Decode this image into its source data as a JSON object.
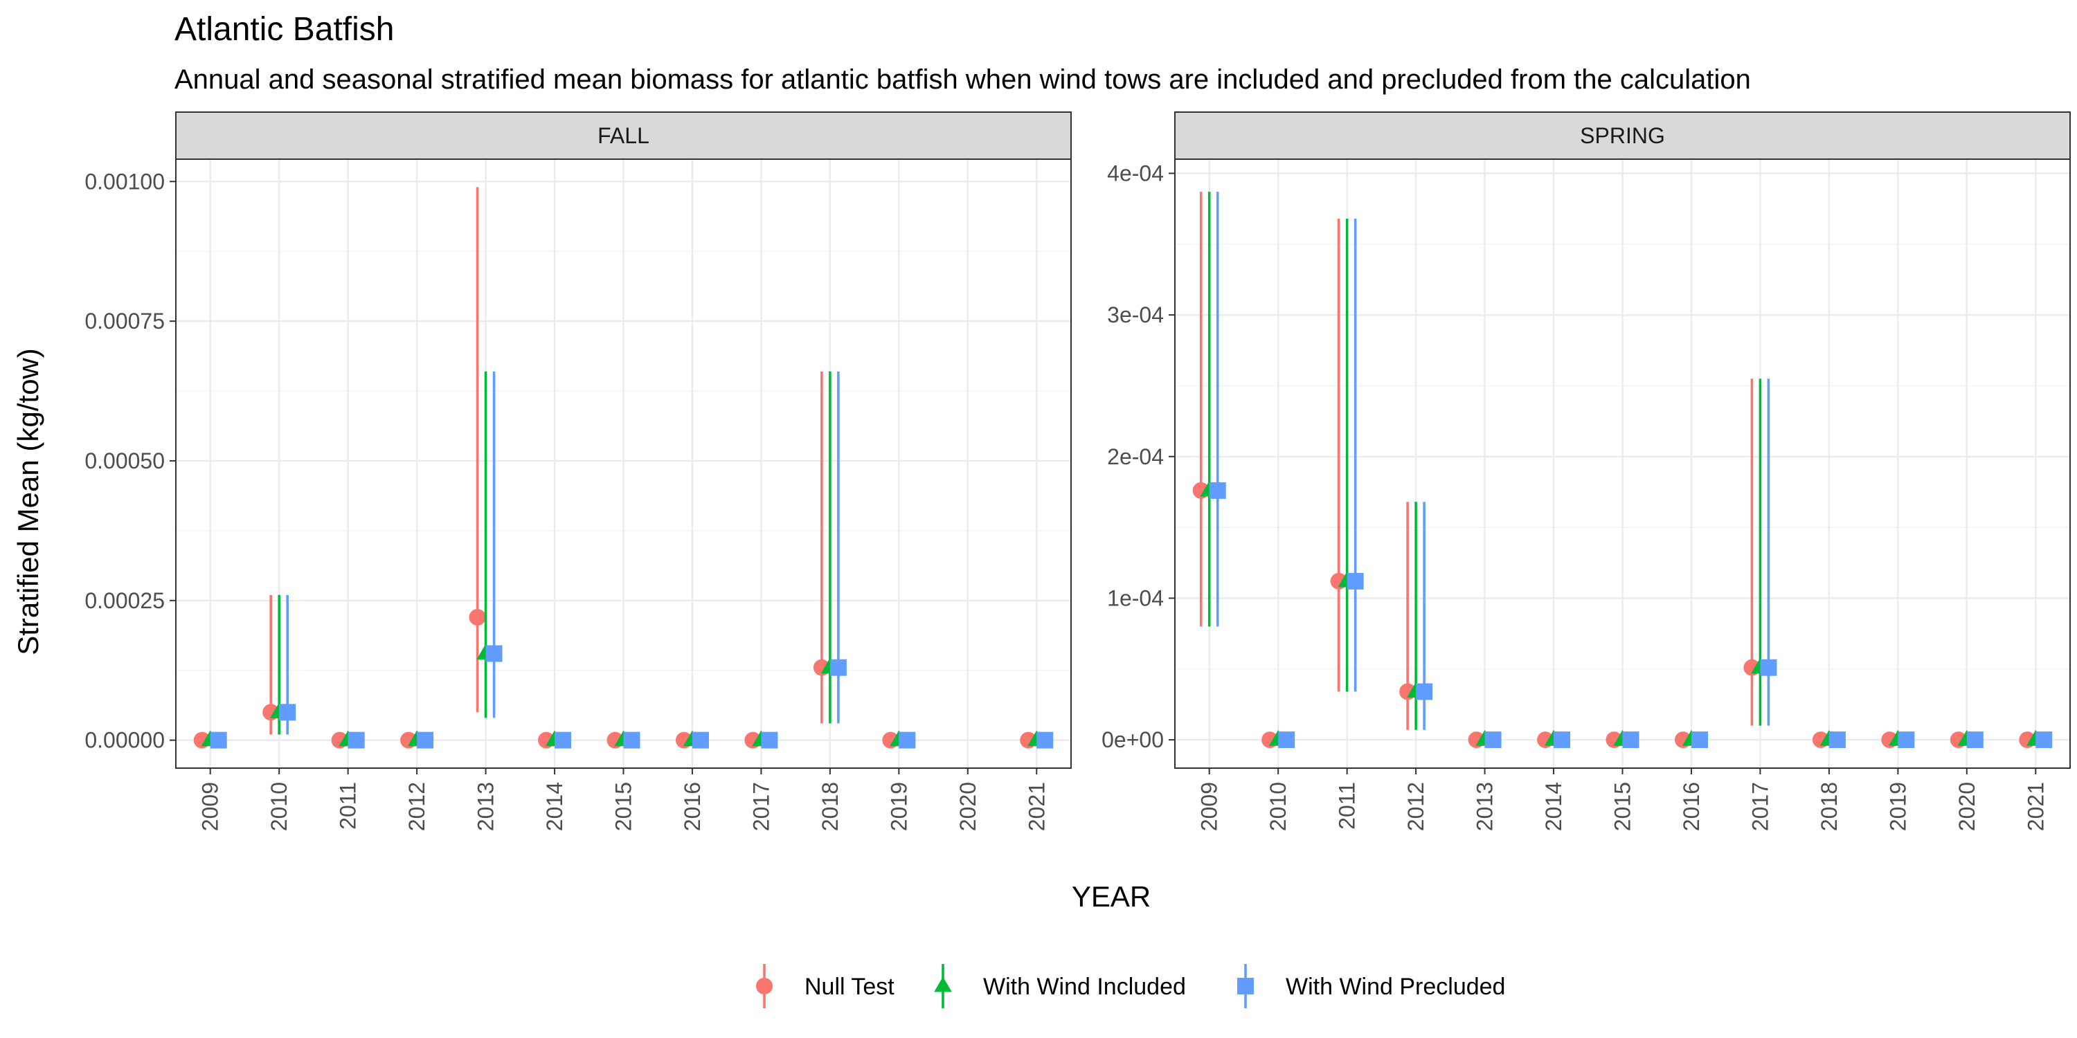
{
  "title": "Atlantic Batfish",
  "subtitle": "Annual and seasonal stratified mean biomass for atlantic batfish when wind tows are included and precluded from the calculation",
  "colors": {
    "Null Test": "#F8766D",
    "With Wind Included": "#00BA38",
    "With Wind Precluded": "#619CFF"
  },
  "chart_data": {
    "type": "scatter",
    "xlabel": "YEAR",
    "ylabel": "Stratified Mean (kg/tow)",
    "legend": {
      "placement": "bottom",
      "entries": [
        "Null Test",
        "With Wind Included",
        "With Wind Precluded"
      ]
    },
    "grid": true,
    "panels": [
      {
        "name": "FALL",
        "categories": [
          "2009",
          "2010",
          "2011",
          "2012",
          "2013",
          "2014",
          "2015",
          "2016",
          "2017",
          "2018",
          "2019",
          "2020",
          "2021"
        ],
        "ylim": [
          -5e-05,
          0.00104
        ],
        "yticks": [
          0,
          0.00025,
          0.0005,
          0.00075,
          0.001
        ],
        "ytick_labels": [
          "0.00000",
          "0.00025",
          "0.00050",
          "0.00075",
          "0.00100"
        ],
        "series": [
          {
            "name": "Null Test",
            "marker": "circle",
            "y": [
              0,
              5e-05,
              0,
              0,
              0.00022,
              0,
              0,
              0,
              0,
              0.00013,
              0,
              null,
              0
            ],
            "lower": [
              null,
              1e-05,
              null,
              null,
              5e-05,
              null,
              null,
              null,
              null,
              3e-05,
              null,
              null,
              null
            ],
            "upper": [
              null,
              0.00026,
              null,
              null,
              0.00099,
              null,
              null,
              null,
              null,
              0.00066,
              null,
              null,
              null
            ]
          },
          {
            "name": "With Wind Included",
            "marker": "triangle",
            "y": [
              0,
              5e-05,
              0,
              0,
              0.000155,
              0,
              0,
              0,
              0,
              0.00013,
              0,
              null,
              0
            ],
            "lower": [
              null,
              1e-05,
              null,
              null,
              4e-05,
              null,
              null,
              null,
              null,
              3e-05,
              null,
              null,
              null
            ],
            "upper": [
              null,
              0.00026,
              null,
              null,
              0.00066,
              null,
              null,
              null,
              null,
              0.00066,
              null,
              null,
              null
            ]
          },
          {
            "name": "With Wind Precluded",
            "marker": "square",
            "y": [
              0,
              5e-05,
              0,
              0,
              0.000155,
              0,
              0,
              0,
              0,
              0.00013,
              0,
              null,
              0
            ],
            "lower": [
              null,
              1e-05,
              null,
              null,
              4e-05,
              null,
              null,
              null,
              null,
              3e-05,
              null,
              null,
              null
            ],
            "upper": [
              null,
              0.00026,
              null,
              null,
              0.00066,
              null,
              null,
              null,
              null,
              0.00066,
              null,
              null,
              null
            ]
          }
        ]
      },
      {
        "name": "SPRING",
        "categories": [
          "2009",
          "2010",
          "2011",
          "2012",
          "2013",
          "2014",
          "2015",
          "2016",
          "2017",
          "2018",
          "2019",
          "2020",
          "2021"
        ],
        "ylim": [
          -2e-05,
          0.00041
        ],
        "yticks": [
          0,
          0.0001,
          0.0002,
          0.0003,
          0.0004
        ],
        "ytick_labels": [
          "0e+00",
          "1e-04",
          "2e-04",
          "3e-04",
          "4e-04"
        ],
        "series": [
          {
            "name": "Null Test",
            "marker": "circle",
            "y": [
              0.000176,
              0,
              0.000112,
              3.4e-05,
              0,
              0,
              0,
              0,
              5.1e-05,
              0,
              0,
              0,
              0
            ],
            "lower": [
              8e-05,
              null,
              3.4e-05,
              7e-06,
              null,
              null,
              null,
              null,
              1e-05,
              null,
              null,
              null,
              null
            ],
            "upper": [
              0.000387,
              null,
              0.000368,
              0.000168,
              null,
              null,
              null,
              null,
              0.000255,
              null,
              null,
              null,
              null
            ]
          },
          {
            "name": "With Wind Included",
            "marker": "triangle",
            "y": [
              0.000176,
              0,
              0.000112,
              3.4e-05,
              0,
              0,
              0,
              0,
              5.1e-05,
              0,
              0,
              0,
              0
            ],
            "lower": [
              8e-05,
              null,
              3.4e-05,
              7e-06,
              null,
              null,
              null,
              null,
              1e-05,
              null,
              null,
              null,
              null
            ],
            "upper": [
              0.000387,
              null,
              0.000368,
              0.000168,
              null,
              null,
              null,
              null,
              0.000255,
              null,
              null,
              null,
              null
            ]
          },
          {
            "name": "With Wind Precluded",
            "marker": "square",
            "y": [
              0.000176,
              0,
              0.000112,
              3.4e-05,
              0,
              0,
              0,
              0,
              5.1e-05,
              0,
              0,
              0,
              0
            ],
            "lower": [
              8e-05,
              null,
              3.4e-05,
              7e-06,
              null,
              null,
              null,
              null,
              1e-05,
              null,
              null,
              null,
              null
            ],
            "upper": [
              0.000387,
              null,
              0.000368,
              0.000168,
              null,
              null,
              null,
              null,
              0.000255,
              null,
              null,
              null,
              null
            ]
          }
        ]
      }
    ]
  }
}
